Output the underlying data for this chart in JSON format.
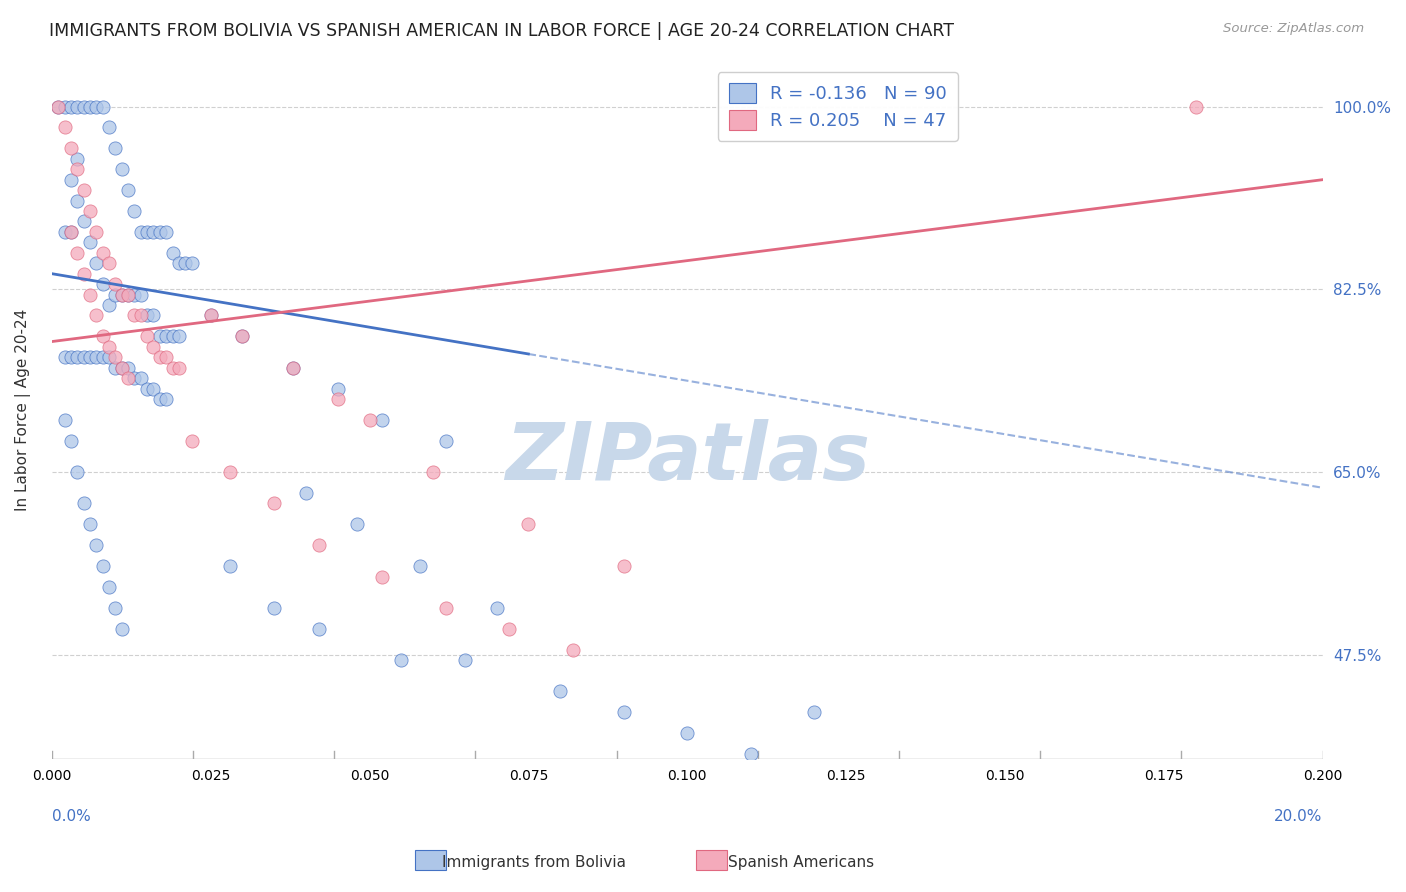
{
  "title": "IMMIGRANTS FROM BOLIVIA VS SPANISH AMERICAN IN LABOR FORCE | AGE 20-24 CORRELATION CHART",
  "source": "Source: ZipAtlas.com",
  "ylabel": "In Labor Force | Age 20-24",
  "ytick_labels": [
    "47.5%",
    "65.0%",
    "82.5%",
    "100.0%"
  ],
  "ytick_values": [
    0.475,
    0.65,
    0.825,
    1.0
  ],
  "xmin": 0.0,
  "xmax": 0.2,
  "ymin": 0.375,
  "ymax": 1.045,
  "bolivia_R": -0.136,
  "bolivia_N": 90,
  "spanish_R": 0.205,
  "spanish_N": 47,
  "bolivia_color": "#aec6e8",
  "spanish_color": "#f4aabb",
  "bolivia_line_color": "#4472c4",
  "spanish_line_color": "#e06880",
  "legend_text_color": "#4472c4",
  "title_color": "#222222",
  "source_color": "#999999",
  "background_color": "#ffffff",
  "grid_color": "#d0d0d0",
  "watermark_color": "#c8d8ea",
  "bolivia_line_y0": 0.84,
  "bolivia_line_y1": 0.635,
  "spanish_line_y0": 0.775,
  "spanish_line_y1": 0.93,
  "bolivia_solid_xend": 0.075,
  "bolivia_scatter_x": [
    0.001,
    0.002,
    0.003,
    0.004,
    0.005,
    0.006,
    0.007,
    0.008,
    0.009,
    0.01,
    0.011,
    0.012,
    0.013,
    0.014,
    0.015,
    0.016,
    0.017,
    0.018,
    0.019,
    0.02,
    0.021,
    0.022,
    0.003,
    0.004,
    0.005,
    0.006,
    0.007,
    0.008,
    0.009,
    0.01,
    0.011,
    0.012,
    0.013,
    0.014,
    0.015,
    0.016,
    0.017,
    0.018,
    0.019,
    0.02,
    0.002,
    0.003,
    0.004,
    0.005,
    0.006,
    0.007,
    0.008,
    0.009,
    0.01,
    0.011,
    0.012,
    0.013,
    0.014,
    0.015,
    0.016,
    0.017,
    0.018,
    0.002,
    0.003,
    0.004,
    0.025,
    0.03,
    0.038,
    0.045,
    0.052,
    0.062,
    0.04,
    0.048,
    0.058,
    0.07,
    0.002,
    0.003,
    0.004,
    0.005,
    0.006,
    0.007,
    0.008,
    0.009,
    0.01,
    0.011,
    0.028,
    0.035,
    0.042,
    0.055,
    0.065,
    0.08,
    0.09,
    0.1,
    0.11,
    0.12
  ],
  "bolivia_scatter_y": [
    1.0,
    1.0,
    1.0,
    1.0,
    1.0,
    1.0,
    1.0,
    1.0,
    0.98,
    0.96,
    0.94,
    0.92,
    0.9,
    0.88,
    0.88,
    0.88,
    0.88,
    0.88,
    0.86,
    0.85,
    0.85,
    0.85,
    0.93,
    0.91,
    0.89,
    0.87,
    0.85,
    0.83,
    0.81,
    0.82,
    0.82,
    0.82,
    0.82,
    0.82,
    0.8,
    0.8,
    0.78,
    0.78,
    0.78,
    0.78,
    0.76,
    0.76,
    0.76,
    0.76,
    0.76,
    0.76,
    0.76,
    0.76,
    0.75,
    0.75,
    0.75,
    0.74,
    0.74,
    0.73,
    0.73,
    0.72,
    0.72,
    0.88,
    0.88,
    0.95,
    0.8,
    0.78,
    0.75,
    0.73,
    0.7,
    0.68,
    0.63,
    0.6,
    0.56,
    0.52,
    0.7,
    0.68,
    0.65,
    0.62,
    0.6,
    0.58,
    0.56,
    0.54,
    0.52,
    0.5,
    0.56,
    0.52,
    0.5,
    0.47,
    0.47,
    0.44,
    0.42,
    0.4,
    0.38,
    0.42
  ],
  "spanish_scatter_x": [
    0.001,
    0.002,
    0.003,
    0.004,
    0.005,
    0.006,
    0.007,
    0.008,
    0.009,
    0.01,
    0.011,
    0.012,
    0.013,
    0.014,
    0.015,
    0.016,
    0.017,
    0.018,
    0.019,
    0.02,
    0.003,
    0.004,
    0.005,
    0.006,
    0.007,
    0.008,
    0.009,
    0.01,
    0.011,
    0.012,
    0.025,
    0.03,
    0.038,
    0.045,
    0.05,
    0.06,
    0.075,
    0.09,
    0.18,
    0.022,
    0.028,
    0.035,
    0.042,
    0.052,
    0.062,
    0.072,
    0.082
  ],
  "spanish_scatter_y": [
    1.0,
    0.98,
    0.96,
    0.94,
    0.92,
    0.9,
    0.88,
    0.86,
    0.85,
    0.83,
    0.82,
    0.82,
    0.8,
    0.8,
    0.78,
    0.77,
    0.76,
    0.76,
    0.75,
    0.75,
    0.88,
    0.86,
    0.84,
    0.82,
    0.8,
    0.78,
    0.77,
    0.76,
    0.75,
    0.74,
    0.8,
    0.78,
    0.75,
    0.72,
    0.7,
    0.65,
    0.6,
    0.56,
    1.0,
    0.68,
    0.65,
    0.62,
    0.58,
    0.55,
    0.52,
    0.5,
    0.48
  ]
}
